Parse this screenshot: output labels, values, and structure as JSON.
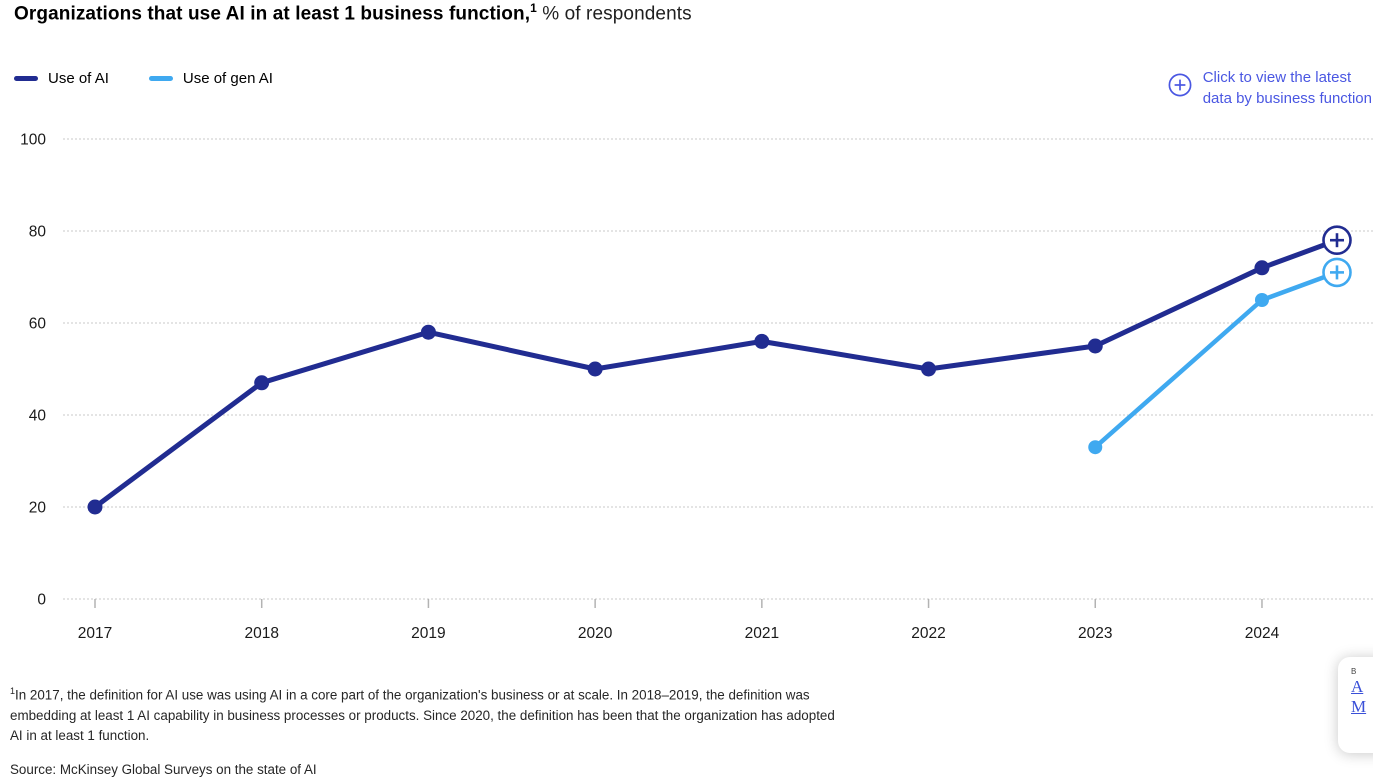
{
  "title": {
    "bold": "Organizations that use AI in at least 1 business function,",
    "sup": "1",
    "rest": " % of respondents"
  },
  "view_link": {
    "line1": "Click to view the latest",
    "line2": "data by business function",
    "icon": "plus-circle-icon",
    "color": "#4a57e2"
  },
  "chart_data": {
    "type": "line",
    "title": "Organizations that use AI in at least 1 business function, % of respondents",
    "xlabel": "",
    "ylabel": "% of respondents",
    "ylim": [
      0,
      100
    ],
    "yticks": [
      0,
      20,
      40,
      60,
      80,
      100
    ],
    "xticks": [
      2017,
      2018,
      2019,
      2020,
      2021,
      2022,
      2023,
      2024
    ],
    "grid": "horizontal-dotted",
    "legend_position": "top-left",
    "series": [
      {
        "name": "Use of AI",
        "color": "#212c91",
        "x": [
          2017,
          2018,
          2019,
          2020,
          2021,
          2022,
          2023,
          2024
        ],
        "values": [
          20,
          47,
          58,
          50,
          56,
          50,
          55,
          72
        ],
        "latest": {
          "x": 2024.45,
          "value": 78,
          "marker": "plus-circle"
        }
      },
      {
        "name": "Use of gen AI",
        "color": "#3fa9f0",
        "x": [
          2023,
          2024
        ],
        "values": [
          33,
          65
        ],
        "latest": {
          "x": 2024.45,
          "value": 71,
          "marker": "plus-circle"
        }
      }
    ]
  },
  "footnote": {
    "sup": "1",
    "text": "In 2017, the definition for AI use was using AI in a core part of the organization's business or at scale. In 2018–2019, the definition was embedding at least 1 AI capability in business processes or products. Since 2020, the definition has been that the organization has adopted AI in at least 1 function."
  },
  "source": "Source: McKinsey Global Surveys on the state of AI",
  "corner_card": {
    "small": "B",
    "letter1": "A",
    "letter2": "M"
  }
}
